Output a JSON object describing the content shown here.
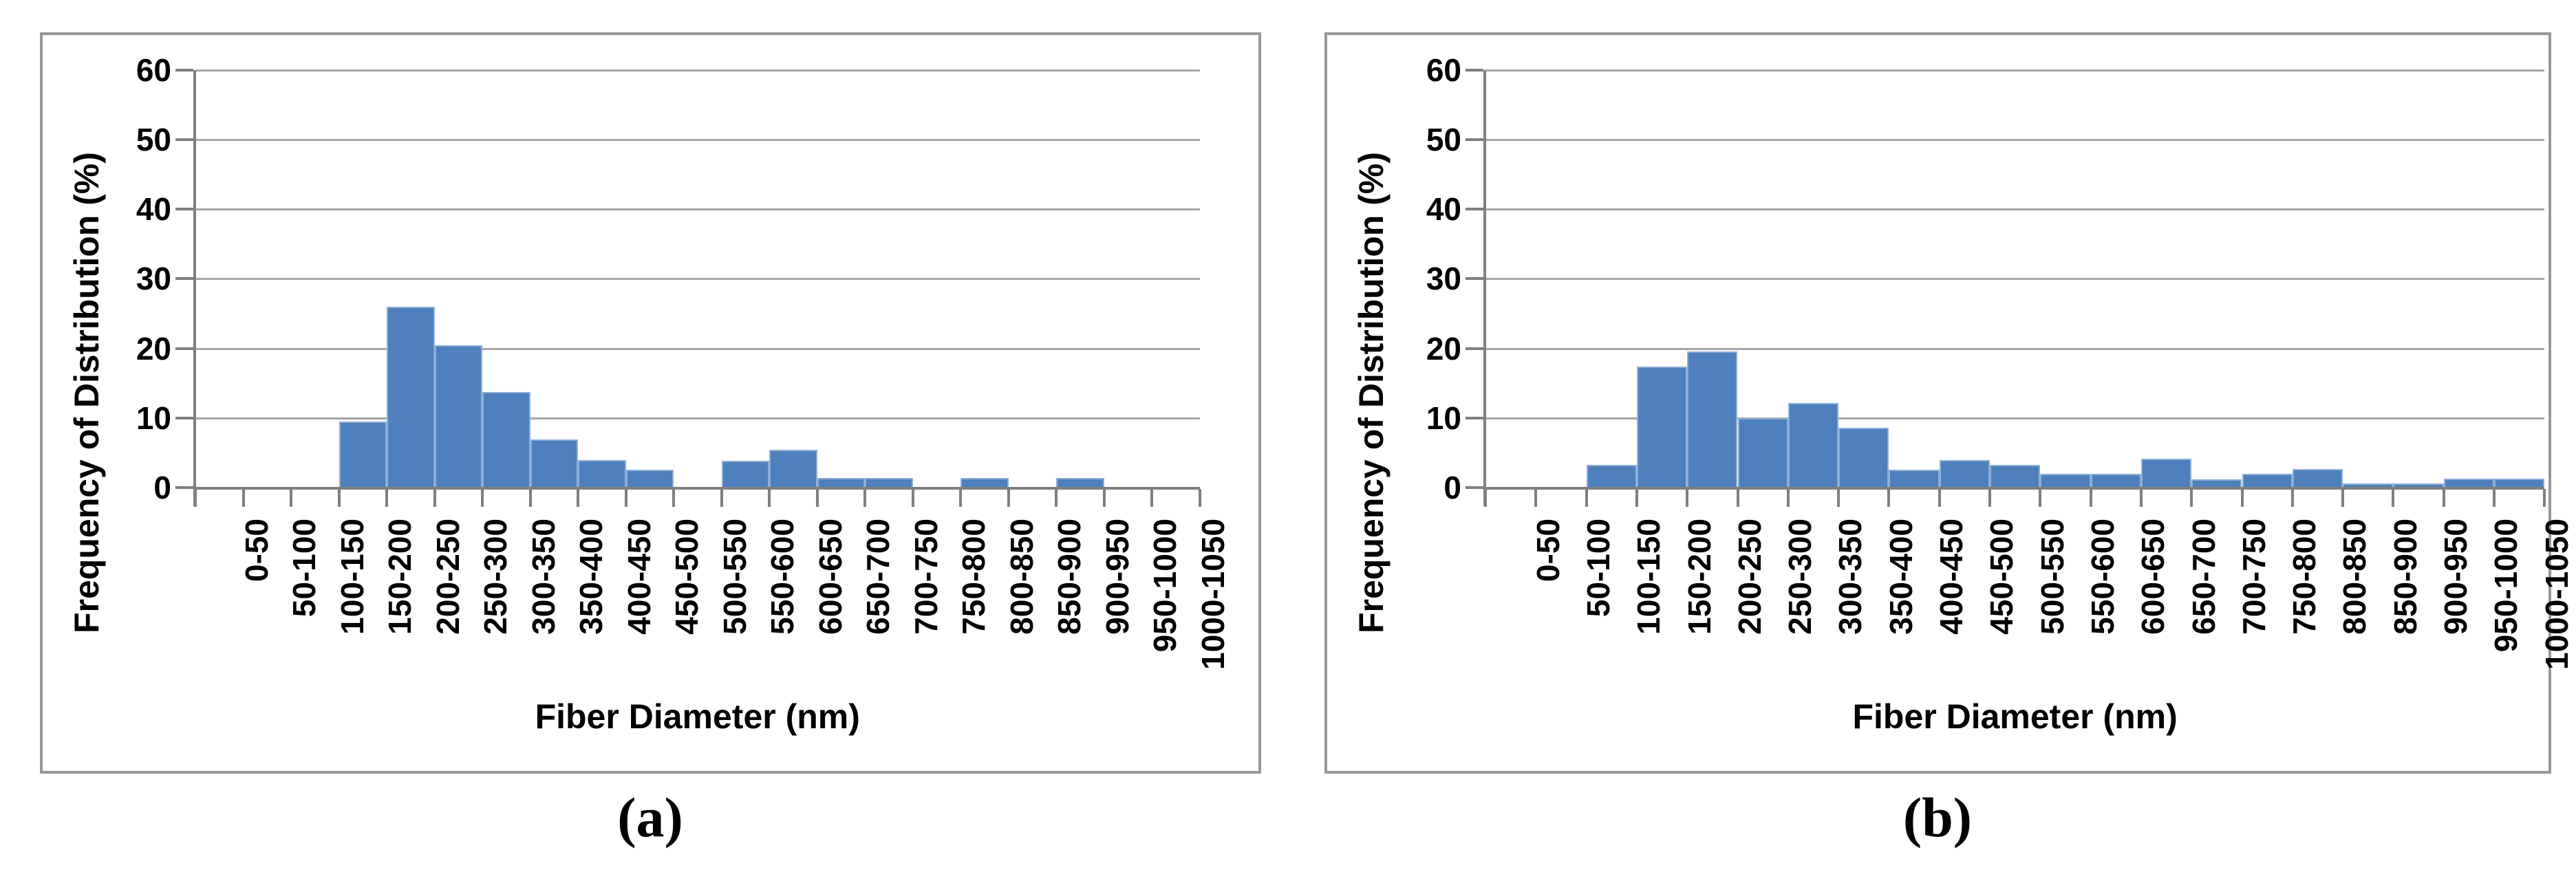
{
  "figure": {
    "background": "#ffffff"
  },
  "chart_data": [
    {
      "type": "bar",
      "caption": "(a)",
      "xlabel": "Fiber Diameter (nm)",
      "ylabel": "Frequency of Distribution (%)",
      "ylim": [
        0,
        60
      ],
      "yticks": [
        0,
        10,
        20,
        30,
        40,
        50,
        60
      ],
      "grid": true,
      "legend": false,
      "bar_color": "#4d80bc",
      "bar_border_color": "#8fafd6",
      "grid_color": "#a6a6a6",
      "axis_color": "#7f7f7f",
      "categories": [
        "0-50",
        "50-100",
        "100-150",
        "150-200",
        "200-250",
        "250-300",
        "300-350",
        "350-400",
        "400-450",
        "450-500",
        "500-550",
        "550-600",
        "600-650",
        "650-700",
        "700-750",
        "750-800",
        "800-850",
        "850-900",
        "900-950",
        "950-1000",
        "1000-1050"
      ],
      "values": [
        0,
        0,
        0,
        9.5,
        26.0,
        20.5,
        13.7,
        6.9,
        4.0,
        2.6,
        0,
        3.9,
        5.4,
        1.4,
        1.4,
        0,
        1.4,
        0,
        1.4,
        0,
        0
      ]
    },
    {
      "type": "bar",
      "caption": "(b)",
      "xlabel": "Fiber Diameter (nm)",
      "ylabel": "Frequency of Distribution (%)",
      "ylim": [
        0,
        60
      ],
      "yticks": [
        0,
        10,
        20,
        30,
        40,
        50,
        60
      ],
      "grid": true,
      "legend": false,
      "bar_color": "#4d80bc",
      "bar_border_color": "#8fafd6",
      "grid_color": "#a6a6a6",
      "axis_color": "#7f7f7f",
      "categories": [
        "0-50",
        "50-100",
        "100-150",
        "150-200",
        "200-250",
        "250-300",
        "300-350",
        "350-400",
        "400-450",
        "450-500",
        "500-550",
        "550-600",
        "600-650",
        "650-700",
        "700-750",
        "750-800",
        "800-850",
        "850-900",
        "900-950",
        "950-1000",
        "1000-1050"
      ],
      "values": [
        0,
        0,
        3.3,
        17.4,
        19.6,
        10.0,
        12.2,
        8.6,
        2.6,
        4.0,
        3.3,
        2.0,
        2.0,
        4.2,
        1.2,
        2.0,
        2.7,
        0.6,
        0.6,
        1.3,
        1.3
      ]
    }
  ]
}
